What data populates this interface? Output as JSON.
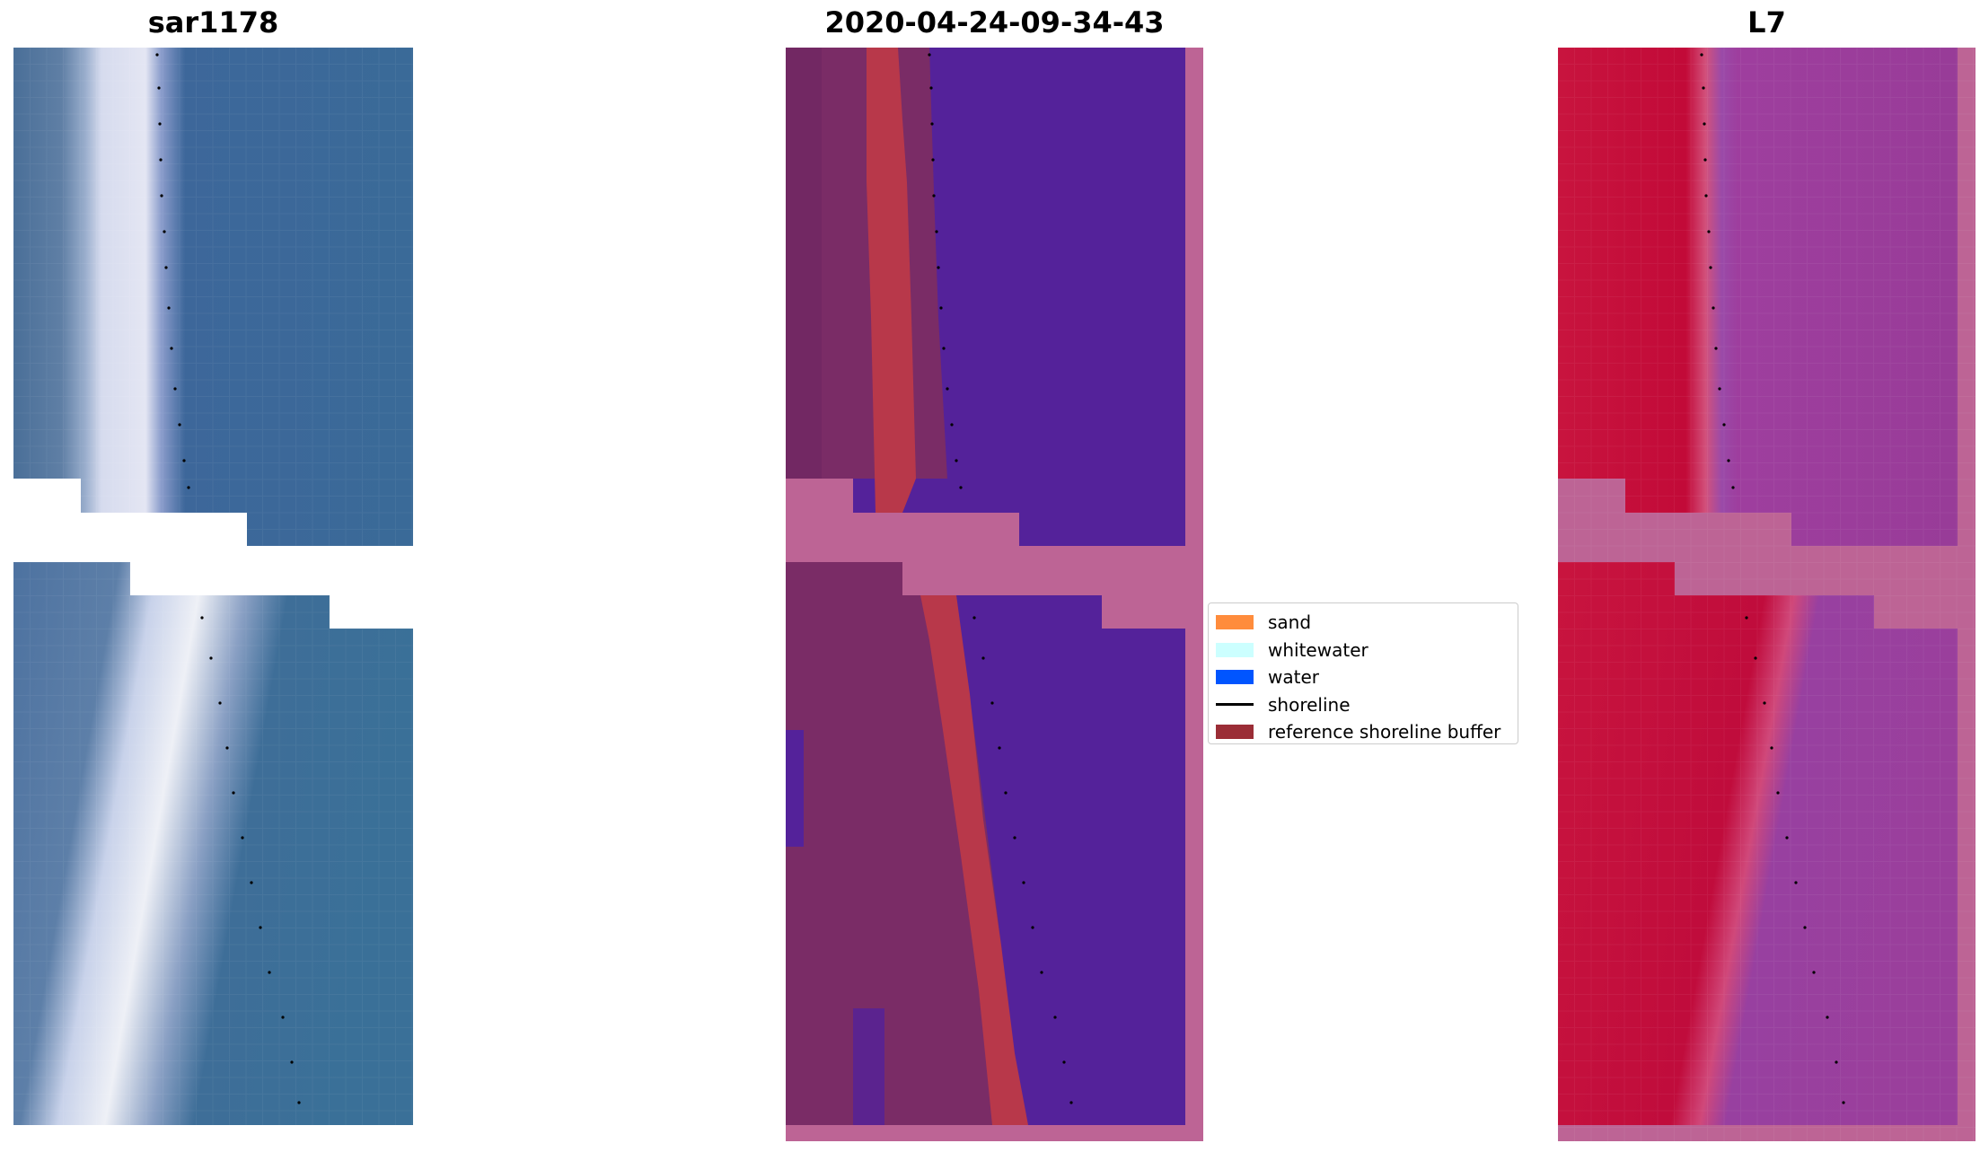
{
  "panels": [
    {
      "title": "sar1178"
    },
    {
      "title": "2020-04-24-09-34-43"
    },
    {
      "title": "L7"
    }
  ],
  "legend": {
    "items": [
      {
        "label": "sand",
        "color": "#ff8c3c",
        "kind": "patch"
      },
      {
        "label": "whitewater",
        "color": "#ccffff",
        "kind": "patch"
      },
      {
        "label": "water",
        "color": "#0055ff",
        "kind": "patch"
      },
      {
        "label": "shoreline",
        "color": "#000000",
        "kind": "line"
      },
      {
        "label": "reference shoreline buffer",
        "color": "#9b2d36",
        "kind": "patch"
      }
    ]
  },
  "colors": {
    "rgb_water": "#3a6a98",
    "rgb_sand": "#d8dcef",
    "class_water": "#54229a",
    "class_land": "#7a2c66",
    "class_buffer": "#b8384a",
    "nodata_pink": "#bd6495",
    "index_land": "#c00c3c",
    "index_water": "#9a3f9c"
  }
}
